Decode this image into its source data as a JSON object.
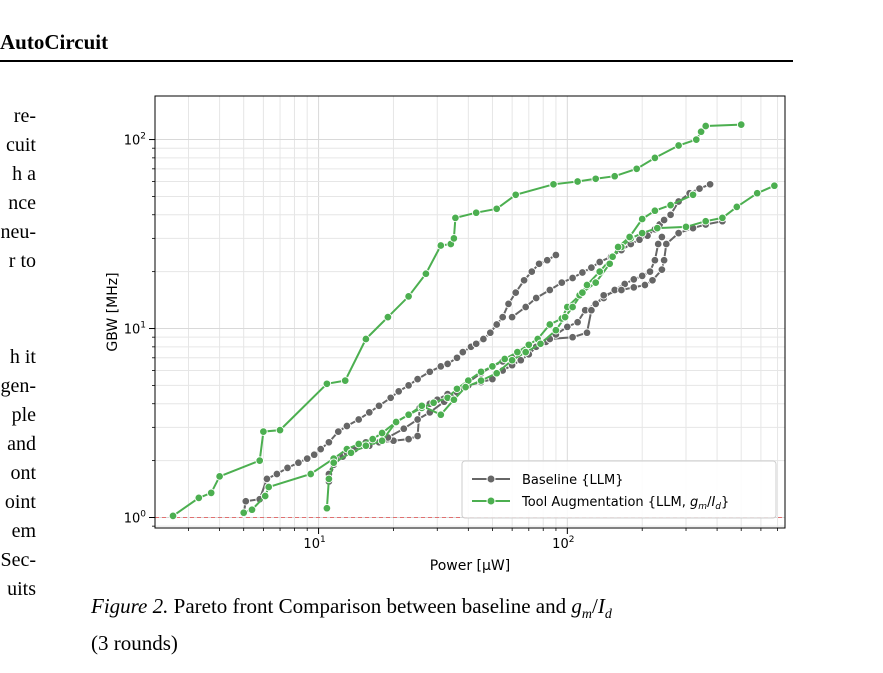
{
  "page": {
    "header_title": "AutoCircuit",
    "left_column_fragments": [
      "re-",
      "cuit",
      "h a",
      "nce",
      "neu-",
      "r to",
      "h it",
      "gen-",
      "ple",
      "and",
      "ont",
      "oint",
      "em",
      "Sec-",
      "uits"
    ]
  },
  "caption": {
    "figure_label": "Figure 2.",
    "text_main": "Pareto front Comparison between baseline and",
    "math_var": "g",
    "math_sub1": "m",
    "math_slash": "/",
    "math_var2": "I",
    "math_sub2": "d",
    "text_end": "(3 rounds)"
  },
  "colors": {
    "baseline": "#666666",
    "tool": "#4caf50",
    "reference_line": "#e07070",
    "grid": "#e6e6e6"
  },
  "chart_data": {
    "type": "line",
    "xlabel": "Power [µW]",
    "ylabel": "GBW [MHz]",
    "xscale": "log",
    "yscale": "log",
    "xlim": [
      2.2,
      750
    ],
    "ylim": [
      0.88,
      170
    ],
    "xticks": [
      {
        "value": 10,
        "base": "10",
        "exp": "1"
      },
      {
        "value": 100,
        "base": "10",
        "exp": "2"
      }
    ],
    "yticks": [
      {
        "value": 1,
        "base": "10",
        "exp": "0"
      },
      {
        "value": 10,
        "base": "10",
        "exp": "1"
      },
      {
        "value": 100,
        "base": "10",
        "exp": "2"
      }
    ],
    "grid": true,
    "reference_line": {
      "y": 1.0,
      "style": "dashed"
    },
    "legend": {
      "position": "bottom-right",
      "entries": [
        {
          "label": "Baseline {LLM}",
          "series": "baseline"
        },
        {
          "label_prefix": "Tool Augmentation {LLM, ",
          "math_var": "g",
          "math_sub1": "m",
          "math_slash": "/",
          "math_var2": "I",
          "math_sub2": "d",
          "label_suffix": "}",
          "series": "tool"
        }
      ]
    },
    "series": [
      {
        "name": "Baseline {LLM}",
        "key": "baseline",
        "paths": [
          [
            [
              5.0,
              1.05
            ],
            [
              5.1,
              1.22
            ],
            [
              5.8,
              1.25
            ],
            [
              6.2,
              1.6
            ],
            [
              6.8,
              1.7
            ],
            [
              7.5,
              1.83
            ],
            [
              8.3,
              1.95
            ],
            [
              9.0,
              2.05
            ],
            [
              9.6,
              2.15
            ],
            [
              10.2,
              2.3
            ],
            [
              11.0,
              2.5
            ],
            [
              12.0,
              2.85
            ],
            [
              13.0,
              3.05
            ],
            [
              14.5,
              3.3
            ],
            [
              16.0,
              3.6
            ],
            [
              17.5,
              3.9
            ],
            [
              19.5,
              4.3
            ],
            [
              21.0,
              4.65
            ],
            [
              23.0,
              5.0
            ],
            [
              25.0,
              5.4
            ],
            [
              28.0,
              5.9
            ],
            [
              31.0,
              6.3
            ],
            [
              33.0,
              6.5
            ],
            [
              36.0,
              7.0
            ],
            [
              38.0,
              7.5
            ],
            [
              41.0,
              8.0
            ],
            [
              43.0,
              8.3
            ],
            [
              46.0,
              8.8
            ],
            [
              49.0,
              9.5
            ],
            [
              52.0,
              10.5
            ],
            [
              55.0,
              11.5
            ],
            [
              58.0,
              13.5
            ],
            [
              62.0,
              15.5
            ],
            [
              67.0,
              18.0
            ],
            [
              72.0,
              20.0
            ],
            [
              77.0,
              22.0
            ],
            [
              83.0,
              23.0
            ],
            [
              90.0,
              24.5
            ]
          ],
          [
            [
              11.0,
              1.55
            ],
            [
              11.5,
              1.9
            ],
            [
              12.5,
              2.1
            ],
            [
              14.0,
              2.3
            ],
            [
              15.5,
              2.5
            ],
            [
              17.5,
              2.5
            ],
            [
              20.0,
              2.55
            ],
            [
              23.0,
              2.6
            ],
            [
              25.0,
              2.7
            ],
            [
              25.5,
              3.8
            ],
            [
              28.0,
              4.0
            ],
            [
              30.0,
              4.2
            ],
            [
              33.0,
              4.5
            ],
            [
              36.0,
              4.6
            ],
            [
              40.0,
              5.0
            ],
            [
              45.0,
              5.2
            ],
            [
              50.0,
              5.4
            ],
            [
              55.0,
              6.0
            ],
            [
              60.0,
              6.4
            ],
            [
              65.0,
              6.8
            ],
            [
              70.0,
              7.3
            ],
            [
              75.0,
              8.0
            ],
            [
              82.0,
              8.5
            ],
            [
              90.0,
              9.3
            ],
            [
              100.0,
              10.2
            ],
            [
              110.0,
              10.8
            ],
            [
              118.0,
              12.5
            ],
            [
              130.0,
              13.5
            ],
            [
              140.0,
              14.5
            ],
            [
              155.0,
              16.0
            ],
            [
              170.0,
              17.2
            ],
            [
              185.0,
              18.2
            ],
            [
              200.0,
              19.0
            ],
            [
              215.0,
              20.0
            ],
            [
              225.0,
              23.0
            ],
            [
              232.0,
              28.0
            ],
            [
              240.0,
              30.5
            ]
          ],
          [
            [
              11.0,
              1.7
            ],
            [
              11.5,
              2.0
            ],
            [
              13.0,
              2.2
            ],
            [
              16.0,
              2.4
            ],
            [
              19.0,
              2.65
            ],
            [
              22.0,
              2.95
            ],
            [
              25.0,
              3.3
            ],
            [
              28.0,
              3.6
            ],
            [
              32.0,
              4.1
            ],
            [
              36.0,
              4.6
            ],
            [
              40.0,
              5.2
            ],
            [
              45.0,
              5.8
            ],
            [
              50.0,
              6.3
            ],
            [
              55.0,
              6.7
            ],
            [
              60.0,
              7.0
            ],
            [
              70.0,
              8.0
            ],
            [
              85.0,
              8.8
            ],
            [
              105.0,
              9.0
            ],
            [
              120.0,
              9.5
            ],
            [
              125.0,
              12.5
            ],
            [
              140.0,
              15.0
            ],
            [
              165.0,
              16.0
            ],
            [
              185.0,
              16.5
            ],
            [
              205.0,
              17.0
            ],
            [
              220.0,
              18.0
            ],
            [
              240.0,
              20.5
            ],
            [
              245.0,
              23.0
            ],
            [
              250.0,
              28.0
            ],
            [
              280.0,
              32.0
            ],
            [
              320.0,
              34.0
            ],
            [
              360.0,
              35.5
            ],
            [
              420.0,
              37.0
            ]
          ],
          [
            [
              60.0,
              11.5
            ],
            [
              68.0,
              13.0
            ],
            [
              75.0,
              14.5
            ],
            [
              85.0,
              16.0
            ],
            [
              95.0,
              17.5
            ],
            [
              105.0,
              18.5
            ],
            [
              115.0,
              19.8
            ],
            [
              125.0,
              21.0
            ],
            [
              135.0,
              22.5
            ],
            [
              150.0,
              24.0
            ],
            [
              165.0,
              26.0
            ],
            [
              180.0,
              28.0
            ],
            [
              195.0,
              29.5
            ],
            [
              210.0,
              31.0
            ],
            [
              225.0,
              33.5
            ],
            [
              235.0,
              35.5
            ],
            [
              245.0,
              37.5
            ],
            [
              260.0,
              40.0
            ],
            [
              280.0,
              47.0
            ],
            [
              310.0,
              52.0
            ],
            [
              340.0,
              55.0
            ],
            [
              375.0,
              58.0
            ]
          ]
        ]
      },
      {
        "name": "Tool Augmentation {LLM, gm/Id}",
        "key": "tool",
        "paths": [
          [
            [
              2.6,
              1.02
            ],
            [
              3.3,
              1.27
            ],
            [
              3.7,
              1.35
            ],
            [
              4.0,
              1.65
            ],
            [
              5.8,
              2.0
            ],
            [
              6.0,
              2.85
            ],
            [
              7.0,
              2.9
            ],
            [
              10.8,
              5.1
            ],
            [
              12.8,
              5.3
            ],
            [
              15.5,
              8.8
            ],
            [
              19.0,
              11.5
            ],
            [
              23.0,
              14.8
            ],
            [
              27.0,
              19.5
            ],
            [
              31.0,
              27.5
            ],
            [
              34.0,
              28.0
            ],
            [
              35.0,
              30.0
            ],
            [
              35.5,
              38.5
            ],
            [
              43.0,
              41.0
            ],
            [
              52.0,
              43.0
            ],
            [
              62.0,
              51.0
            ],
            [
              88.0,
              58.0
            ],
            [
              110.0,
              60.0
            ],
            [
              130.0,
              62.0
            ],
            [
              155.0,
              64.0
            ],
            [
              190.0,
              70.0
            ],
            [
              225.0,
              80.0
            ],
            [
              280.0,
              93.0
            ],
            [
              330.0,
              100.0
            ],
            [
              345.0,
              110.0
            ],
            [
              360.0,
              118.0
            ],
            [
              500.0,
              120.0
            ]
          ],
          [
            [
              5.0,
              1.06
            ],
            [
              5.4,
              1.1
            ],
            [
              6.1,
              1.3
            ],
            [
              6.3,
              1.45
            ],
            [
              9.3,
              1.7
            ],
            [
              11.5,
              2.05
            ],
            [
              13.0,
              2.3
            ],
            [
              14.5,
              2.45
            ],
            [
              16.5,
              2.6
            ],
            [
              18.0,
              2.8
            ],
            [
              20.5,
              3.2
            ],
            [
              23.0,
              3.5
            ],
            [
              26.0,
              3.8
            ],
            [
              29.0,
              4.05
            ],
            [
              33.0,
              4.3
            ],
            [
              36.0,
              4.8
            ],
            [
              40.0,
              5.3
            ],
            [
              45.0,
              5.9
            ],
            [
              50.0,
              6.3
            ],
            [
              56.0,
              6.9
            ],
            [
              63.0,
              7.5
            ],
            [
              70.0,
              8.2
            ],
            [
              76.0,
              8.8
            ],
            [
              85.0,
              10.5
            ],
            [
              95.0,
              11.3
            ],
            [
              100.0,
              13.0
            ],
            [
              112.0,
              15.0
            ],
            [
              120.0,
              17.0
            ],
            [
              135.0,
              20.0
            ],
            [
              152.0,
              24.0
            ],
            [
              165.0,
              27.0
            ],
            [
              180.0,
              30.0
            ],
            [
              200.0,
              32.0
            ],
            [
              230.0,
              34.0
            ],
            [
              300.0,
              34.5
            ],
            [
              360.0,
              37.0
            ],
            [
              420.0,
              38.5
            ],
            [
              480.0,
              44.0
            ],
            [
              580.0,
              52.0
            ],
            [
              680.0,
              57.0
            ]
          ],
          [
            [
              10.8,
              1.12
            ],
            [
              11.0,
              1.6
            ],
            [
              11.5,
              1.95
            ],
            [
              13.5,
              2.2
            ],
            [
              15.5,
              2.4
            ],
            [
              18.0,
              2.55
            ],
            [
              20.5,
              3.2
            ],
            [
              23.0,
              3.5
            ],
            [
              26.0,
              3.9
            ],
            [
              31.0,
              3.5
            ],
            [
              35.0,
              4.2
            ],
            [
              39.0,
              4.9
            ],
            [
              45.0,
              5.3
            ],
            [
              52.0,
              5.8
            ],
            [
              60.0,
              6.8
            ],
            [
              68.0,
              7.5
            ],
            [
              78.0,
              8.3
            ],
            [
              90.0,
              9.8
            ],
            [
              98.0,
              11.5
            ],
            [
              105.0,
              13.0
            ],
            [
              115.0,
              15.5
            ],
            [
              130.0,
              17.5
            ],
            [
              148.0,
              22.0
            ],
            [
              160.0,
              27.0
            ],
            [
              178.0,
              30.5
            ],
            [
              200.0,
              38.0
            ],
            [
              225.0,
              42.0
            ],
            [
              260.0,
              45.0
            ],
            [
              320.0,
              51.0
            ]
          ]
        ]
      }
    ]
  }
}
